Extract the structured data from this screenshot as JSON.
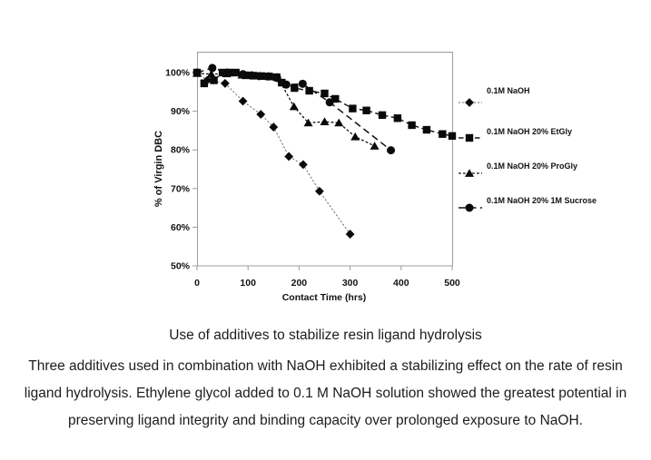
{
  "chart_data": {
    "type": "line",
    "title": "",
    "xlabel": "Contact Time (hrs)",
    "ylabel": "% of Virgin DBC",
    "xlim": [
      0,
      500
    ],
    "ylim": [
      50,
      105
    ],
    "grid": false,
    "legend_position": "right",
    "colors": {
      "frame": "#9c9c9c",
      "ink": "#111111",
      "marker": "#0a0a0a"
    },
    "x_axis": {
      "title": "Contact Time (hrs)",
      "tick_values": [
        0,
        100,
        200,
        300,
        400,
        500
      ],
      "tick_labels": [
        "0",
        "100",
        "200",
        "300",
        "400",
        "500"
      ]
    },
    "y_axis": {
      "title": "% of Virgin DBC",
      "tick_values": [
        100,
        90,
        80,
        70,
        60,
        50
      ],
      "tick_labels": [
        "100%",
        "90%",
        "80%",
        "70%",
        "60%",
        "50%"
      ]
    },
    "series": [
      {
        "name": "0.1M NaOH",
        "marker": "diamond",
        "line_style": "dotted",
        "line_color": "#6e6e6e",
        "marker_color": "#0a0a0a",
        "points": [
          [
            0,
            100
          ],
          [
            20,
            98
          ],
          [
            55,
            97.2
          ],
          [
            90,
            92.6
          ],
          [
            125,
            89.2
          ],
          [
            150,
            85.9
          ],
          [
            180,
            78.3
          ],
          [
            208,
            76.2
          ],
          [
            240,
            69.3
          ],
          [
            300,
            58.2
          ]
        ]
      },
      {
        "name": "0.1M NaOH 20% EtGly",
        "marker": "square",
        "line_style": "dash",
        "line_color": "#111111",
        "marker_color": "#0a0a0a",
        "points": [
          [
            0,
            100
          ],
          [
            14,
            97.2
          ],
          [
            33,
            98
          ],
          [
            50,
            100
          ],
          [
            63,
            100
          ],
          [
            76,
            100
          ],
          [
            95,
            99.3
          ],
          [
            110,
            99.2
          ],
          [
            126,
            99.1
          ],
          [
            141,
            99
          ],
          [
            156,
            98.8
          ],
          [
            166,
            97.4
          ],
          [
            191,
            96
          ],
          [
            220,
            95.3
          ],
          [
            250,
            94.6
          ],
          [
            271,
            93.2
          ],
          [
            305,
            90.7
          ],
          [
            332,
            90.2
          ],
          [
            363,
            89
          ],
          [
            393,
            88.2
          ],
          [
            421,
            86.4
          ],
          [
            450,
            85.2
          ],
          [
            481,
            84.1
          ],
          [
            500,
            83.6
          ]
        ]
      },
      {
        "name": "0.1M NaOH 20% ProGly",
        "marker": "triangle",
        "line_style": "shortdash",
        "line_color": "#111111",
        "marker_color": "#0a0a0a",
        "points": [
          [
            0,
            99.8
          ],
          [
            28,
            99.6
          ],
          [
            58,
            99.7
          ],
          [
            88,
            99.4
          ],
          [
            116,
            99.2
          ],
          [
            140,
            99.1
          ],
          [
            158,
            98.8
          ],
          [
            190,
            91.2
          ],
          [
            218,
            87
          ],
          [
            250,
            87.3
          ],
          [
            278,
            87
          ],
          [
            310,
            83.4
          ],
          [
            348,
            81
          ]
        ]
      },
      {
        "name": "0.1M NaOH 20% 1M Sucrose",
        "marker": "circle",
        "line_style": "longdash",
        "line_color": "#111111",
        "marker_color": "#0a0a0a",
        "points": [
          [
            0,
            100
          ],
          [
            30,
            101.2
          ],
          [
            60,
            100
          ],
          [
            90,
            99.6
          ],
          [
            107,
            99.3
          ],
          [
            122,
            99.1
          ],
          [
            140,
            99
          ],
          [
            157,
            98.6
          ],
          [
            175,
            96.9
          ],
          [
            207,
            97.1
          ],
          [
            260,
            92.3
          ],
          [
            380,
            79.9
          ]
        ]
      }
    ]
  },
  "caption": {
    "title": "Use of additives to stabilize resin ligand hydrolysis",
    "body_lines": [
      "Three additives used in combination with NaOH exhibited a stabilizing effect on the rate of resin",
      "ligand hydrolysis. Ethylene glycol added to 0.1 M NaOH solution showed the greatest potential in",
      "preserving ligand integrity and binding capacity over prolonged exposure to NaOH."
    ]
  }
}
